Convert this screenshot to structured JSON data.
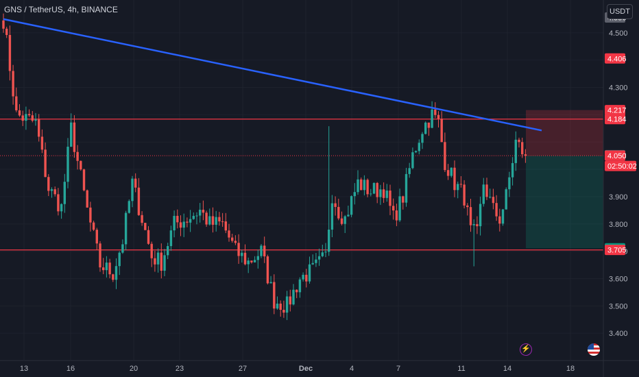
{
  "header": {
    "symbol_title": "GNS / TetherUS, 4h, BINANCE",
    "currency_label": "USDT"
  },
  "colors": {
    "background": "#161a25",
    "up_candle": "#26a69a",
    "down_candle": "#ef5350",
    "trendline": "#2962ff",
    "horizontal_line": "#f23645",
    "grid": "#1e222d"
  },
  "icons": [
    "lightning-icon",
    "us-flag-icon"
  ],
  "chart_data": {
    "type": "candlestick",
    "timeframe": "4h",
    "y_axis": {
      "range": [
        3.3,
        4.62
      ],
      "ticks": [
        "3.400",
        "3.500",
        "3.600",
        "3.700",
        "3.800",
        "3.900",
        "4.300",
        "4.500"
      ]
    },
    "x_axis": {
      "ticks": [
        "13",
        "16",
        "20",
        "23",
        "27",
        "Dec",
        "4",
        "7",
        "11",
        "14",
        "18"
      ]
    },
    "price_tags": [
      {
        "label": "4.556",
        "value": 4.556,
        "style": "gray"
      },
      {
        "label": "4.406",
        "value": 4.406,
        "style": "red"
      },
      {
        "label": "4.217",
        "value": 4.217,
        "style": "red"
      },
      {
        "label": "4.184",
        "value": 4.184,
        "style": "red"
      },
      {
        "label": "4.052",
        "value": 4.052,
        "style": "gray"
      },
      {
        "label": "4.050",
        "value": 4.05,
        "style": "red"
      },
      {
        "label": "02:50:02",
        "value": 4.02,
        "style": "countdown"
      },
      {
        "label": "3.711",
        "value": 3.711,
        "style": "green"
      },
      {
        "label": "3.705",
        "value": 3.705,
        "style": "red"
      }
    ],
    "horizontal_lines": [
      4.184,
      3.705
    ],
    "current_price_line": 4.05,
    "trendline": {
      "from": [
        0,
        4.55
      ],
      "to": [
        162,
        4.16
      ]
    },
    "position_box": {
      "start_bar": 158,
      "end_bar": 180,
      "entry": 4.05,
      "stop": 4.217,
      "target": 3.711
    },
    "anchors": [
      [
        0,
        4.55
      ],
      [
        4,
        4.2
      ],
      [
        10,
        4.17
      ],
      [
        14,
        3.93
      ],
      [
        18,
        3.86
      ],
      [
        21,
        4.15
      ],
      [
        26,
        3.85
      ],
      [
        30,
        3.65
      ],
      [
        34,
        3.62
      ],
      [
        37,
        3.74
      ],
      [
        40,
        3.95
      ],
      [
        43,
        3.82
      ],
      [
        46,
        3.68
      ],
      [
        49,
        3.66
      ],
      [
        53,
        3.8
      ],
      [
        57,
        3.82
      ],
      [
        61,
        3.85
      ],
      [
        64,
        3.8
      ],
      [
        68,
        3.8
      ],
      [
        72,
        3.7
      ],
      [
        76,
        3.66
      ],
      [
        80,
        3.7
      ],
      [
        84,
        3.52
      ],
      [
        88,
        3.5
      ],
      [
        92,
        3.6
      ],
      [
        96,
        3.63
      ],
      [
        100,
        3.68
      ],
      [
        102,
        3.91
      ],
      [
        104,
        3.85
      ],
      [
        106,
        3.82
      ],
      [
        110,
        3.95
      ],
      [
        114,
        3.92
      ],
      [
        118,
        3.93
      ],
      [
        121,
        3.82
      ],
      [
        124,
        3.9
      ],
      [
        127,
        4.05
      ],
      [
        130,
        4.15
      ],
      [
        133,
        4.2
      ],
      [
        135,
        4.17
      ],
      [
        137,
        4.03
      ],
      [
        140,
        3.95
      ],
      [
        143,
        3.9
      ],
      [
        145,
        3.77
      ],
      [
        147,
        3.76
      ],
      [
        149,
        3.95
      ],
      [
        152,
        3.85
      ],
      [
        154,
        3.82
      ],
      [
        156,
        3.9
      ],
      [
        159,
        4.1
      ],
      [
        162,
        4.05
      ]
    ]
  }
}
